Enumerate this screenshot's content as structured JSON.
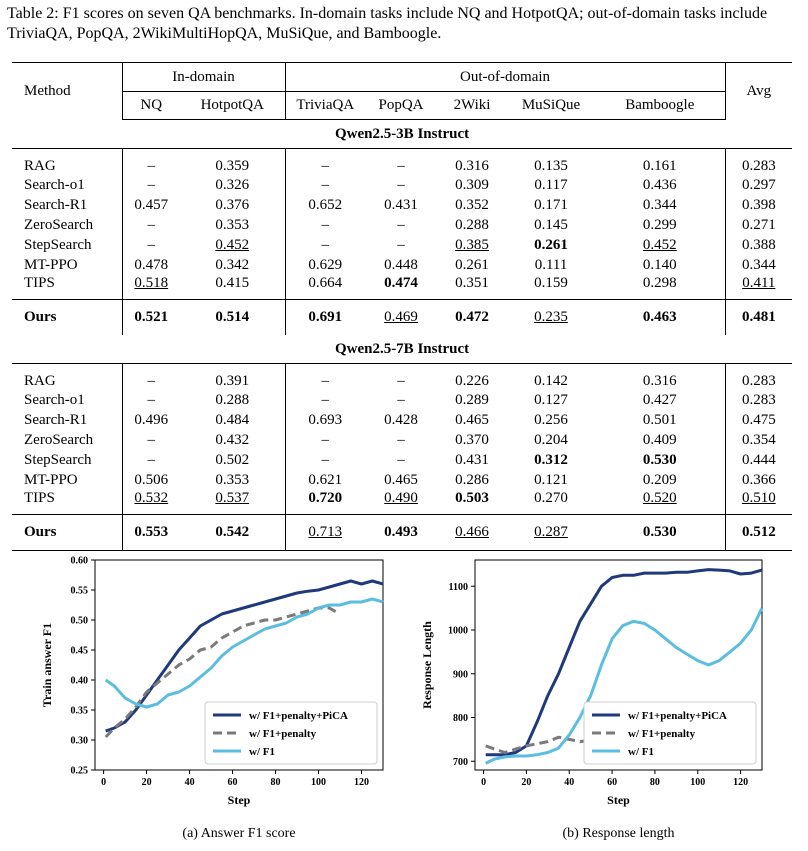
{
  "caption": "Table 2: F1 scores on seven QA benchmarks. In-domain tasks include NQ and HotpotQA; out-of-domain tasks include TriviaQA, PopQA, 2WikiMultiHopQA, MuSiQue, and Bamboogle.",
  "table": {
    "header": {
      "method": "Method",
      "in_domain": "In-domain",
      "out_domain": "Out-of-domain",
      "avg": "Avg"
    },
    "columns": [
      "NQ",
      "HotpotQA",
      "TriviaQA",
      "PopQA",
      "2Wiki",
      "MuSiQue",
      "Bamboogle"
    ],
    "sections": [
      {
        "title": "Qwen2.5-3B Instruct",
        "rows": [
          {
            "method": "RAG",
            "cells": [
              "–",
              "0.359",
              "–",
              "–",
              "0.316",
              "0.135",
              "0.161",
              "0.283"
            ]
          },
          {
            "method": "Search-o1",
            "cells": [
              "–",
              "0.326",
              "–",
              "–",
              "0.309",
              "0.117",
              "0.436",
              "0.297"
            ]
          },
          {
            "method": "Search-R1",
            "cells": [
              "0.457",
              "0.376",
              "0.652",
              "0.431",
              "0.352",
              "0.171",
              "0.344",
              "0.398"
            ]
          },
          {
            "method": "ZeroSearch",
            "cells": [
              "–",
              "0.353",
              "–",
              "–",
              "0.288",
              "0.145",
              "0.299",
              "0.271"
            ]
          },
          {
            "method": "StepSearch",
            "cells": [
              "–",
              "0.452",
              "–",
              "–",
              "0.385",
              "0.261",
              "0.452",
              "0.388"
            ],
            "bold": [
              5
            ],
            "underline": [
              1,
              4,
              6
            ]
          },
          {
            "method": "MT-PPO",
            "cells": [
              "0.478",
              "0.342",
              "0.629",
              "0.448",
              "0.261",
              "0.111",
              "0.140",
              "0.344"
            ]
          },
          {
            "method": "TIPS",
            "cells": [
              "0.518",
              "0.415",
              "0.664",
              "0.474",
              "0.351",
              "0.159",
              "0.298",
              "0.411"
            ],
            "bold": [
              3
            ],
            "underline": [
              0,
              7
            ]
          }
        ],
        "ours": {
          "method": "Ours",
          "cells": [
            "0.521",
            "0.514",
            "0.691",
            "0.469",
            "0.472",
            "0.235",
            "0.463",
            "0.481"
          ],
          "bold": [
            0,
            1,
            2,
            4,
            6,
            7
          ],
          "underline": [
            3,
            5
          ]
        }
      },
      {
        "title": "Qwen2.5-7B Instruct",
        "rows": [
          {
            "method": "RAG",
            "cells": [
              "–",
              "0.391",
              "–",
              "–",
              "0.226",
              "0.142",
              "0.316",
              "0.283"
            ]
          },
          {
            "method": "Search-o1",
            "cells": [
              "–",
              "0.288",
              "–",
              "–",
              "0.289",
              "0.127",
              "0.427",
              "0.283"
            ]
          },
          {
            "method": "Search-R1",
            "cells": [
              "0.496",
              "0.484",
              "0.693",
              "0.428",
              "0.465",
              "0.256",
              "0.501",
              "0.475"
            ]
          },
          {
            "method": "ZeroSearch",
            "cells": [
              "–",
              "0.432",
              "–",
              "–",
              "0.370",
              "0.204",
              "0.409",
              "0.354"
            ]
          },
          {
            "method": "StepSearch",
            "cells": [
              "–",
              "0.502",
              "–",
              "–",
              "0.431",
              "0.312",
              "0.530",
              "0.444"
            ],
            "bold": [
              5,
              6
            ]
          },
          {
            "method": "MT-PPO",
            "cells": [
              "0.506",
              "0.353",
              "0.621",
              "0.465",
              "0.286",
              "0.121",
              "0.209",
              "0.366"
            ]
          },
          {
            "method": "TIPS",
            "cells": [
              "0.532",
              "0.537",
              "0.720",
              "0.490",
              "0.503",
              "0.270",
              "0.520",
              "0.510"
            ],
            "bold": [
              2,
              4
            ],
            "underline": [
              0,
              1,
              3,
              6,
              7
            ]
          }
        ],
        "ours": {
          "method": "Ours",
          "cells": [
            "0.553",
            "0.542",
            "0.713",
            "0.493",
            "0.466",
            "0.287",
            "0.530",
            "0.512"
          ],
          "bold": [
            0,
            1,
            3,
            6,
            7
          ],
          "underline": [
            2,
            4,
            5
          ]
        }
      }
    ]
  },
  "chart_data": [
    {
      "type": "line",
      "caption": "(a) Answer F1 score",
      "xlabel": "Step",
      "ylabel": "Train answer F1",
      "legend": "lower right",
      "xlim": [
        -4,
        130
      ],
      "xticks": [
        0,
        20,
        40,
        60,
        80,
        100,
        120
      ],
      "ylim": [
        0.25,
        0.6
      ],
      "yticks": [
        0.25,
        {
          "value": 0.3,
          "label": "0.30"
        },
        0.35,
        {
          "value": 0.4,
          "label": "0.40"
        },
        0.45,
        {
          "value": 0.5,
          "label": "0.50"
        },
        0.55,
        {
          "value": 0.6,
          "label": "0.60"
        }
      ],
      "x": [
        1,
        5,
        10,
        15,
        20,
        25,
        30,
        35,
        40,
        45,
        50,
        55,
        60,
        65,
        70,
        75,
        80,
        85,
        90,
        95,
        100,
        105,
        110,
        115,
        120,
        125,
        130
      ],
      "series": [
        {
          "name": "w/ F1+penalty+PiCA",
          "color": "#1f3a7a",
          "linestyle": "solid",
          "values": [
            0.315,
            0.32,
            0.33,
            0.35,
            0.375,
            0.4,
            0.425,
            0.45,
            0.47,
            0.49,
            0.5,
            0.51,
            0.515,
            0.52,
            0.525,
            0.53,
            0.535,
            0.54,
            0.545,
            0.548,
            0.55,
            0.555,
            0.56,
            0.565,
            0.56,
            0.565,
            0.56
          ]
        },
        {
          "name": "w/ F1+penalty",
          "color": "#7a7a7a",
          "linestyle": "dashed",
          "values": [
            0.305,
            0.32,
            0.335,
            0.355,
            0.38,
            0.395,
            0.41,
            0.425,
            0.435,
            0.45,
            0.455,
            0.47,
            0.48,
            0.49,
            0.495,
            0.5,
            0.5,
            0.505,
            0.51,
            0.515,
            0.52,
            0.52,
            0.51,
            null,
            null,
            null,
            null
          ]
        },
        {
          "name": "w/ F1",
          "color": "#5bbde0",
          "linestyle": "solid",
          "values": [
            0.4,
            0.39,
            0.37,
            0.36,
            0.355,
            0.36,
            0.375,
            0.38,
            0.39,
            0.405,
            0.42,
            0.44,
            0.455,
            0.465,
            0.475,
            0.485,
            0.49,
            0.495,
            0.505,
            0.51,
            0.52,
            0.525,
            0.525,
            0.53,
            0.53,
            0.535,
            0.53
          ]
        }
      ]
    },
    {
      "type": "line",
      "caption": "(b) Response length",
      "xlabel": "Step",
      "ylabel": "Response Length",
      "legend": "lower right",
      "xlim": [
        -4,
        130
      ],
      "xticks": [
        0,
        20,
        40,
        60,
        80,
        100,
        120
      ],
      "ylim": [
        680,
        1160
      ],
      "yticks": [
        700,
        800,
        900,
        1000,
        1100
      ],
      "x": [
        1,
        5,
        10,
        15,
        20,
        25,
        30,
        35,
        40,
        45,
        50,
        55,
        60,
        65,
        70,
        75,
        80,
        85,
        90,
        95,
        100,
        105,
        110,
        115,
        120,
        125,
        130
      ],
      "series": [
        {
          "name": "w/ F1+penalty+PiCA",
          "color": "#1f3a7a",
          "linestyle": "solid",
          "values": [
            715,
            715,
            715,
            720,
            735,
            790,
            850,
            900,
            960,
            1020,
            1060,
            1100,
            1120,
            1125,
            1125,
            1130,
            1130,
            1130,
            1132,
            1132,
            1135,
            1138,
            1137,
            1135,
            1128,
            1130,
            1137
          ]
        },
        {
          "name": "w/ F1+penalty",
          "color": "#7a7a7a",
          "linestyle": "dashed",
          "values": [
            735,
            728,
            720,
            728,
            735,
            740,
            745,
            755,
            750,
            745,
            748,
            755,
            770,
            800,
            830,
            830,
            815,
            800,
            790,
            780,
            775,
            765,
            745,
            null,
            null,
            null,
            null
          ]
        },
        {
          "name": "w/ F1",
          "color": "#5bbde0",
          "linestyle": "solid",
          "values": [
            695,
            705,
            710,
            712,
            712,
            715,
            720,
            730,
            760,
            800,
            850,
            920,
            980,
            1010,
            1020,
            1015,
            1000,
            980,
            960,
            945,
            930,
            920,
            930,
            950,
            970,
            1000,
            1050
          ]
        }
      ]
    }
  ]
}
